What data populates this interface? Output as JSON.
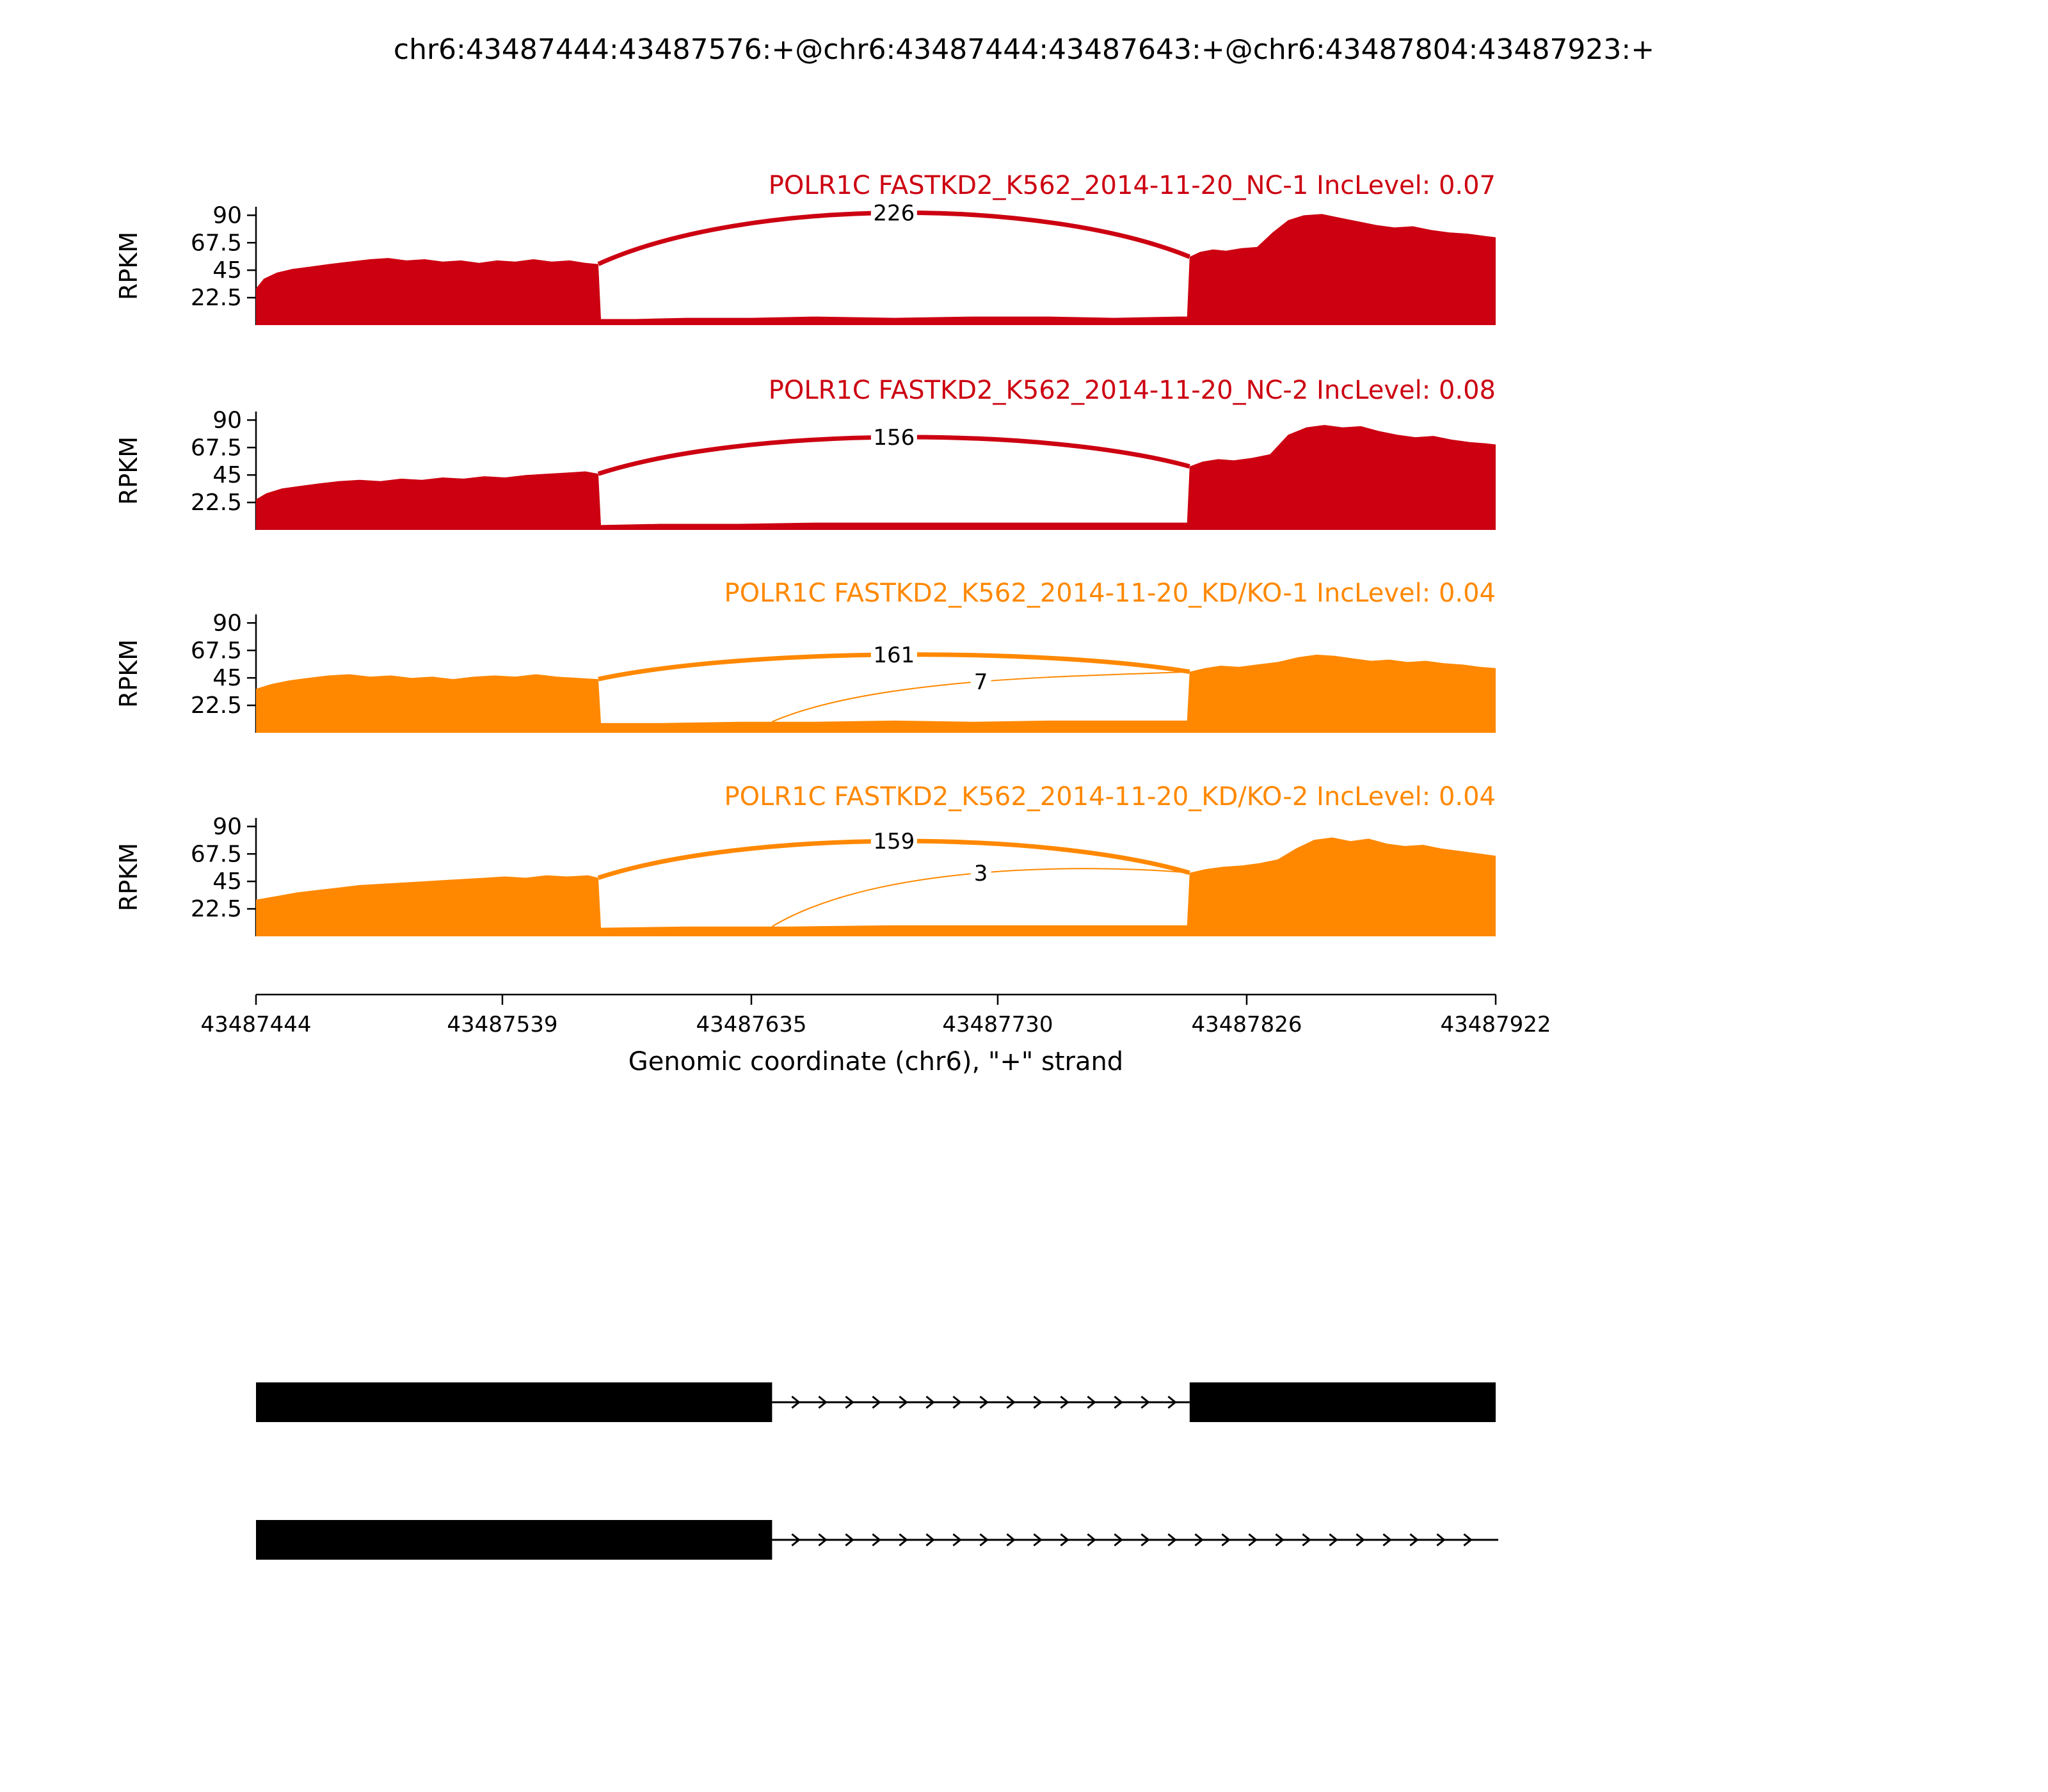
{
  "title": "chr6:43487444:43487576:+@chr6:43487444:43487643:+@chr6:43487804:43487923:+",
  "x_axis": {
    "label": "Genomic coordinate (chr6), \"+\" strand",
    "ticks": [
      43487444,
      43487539,
      43487635,
      43487730,
      43487826,
      43487922
    ],
    "range": [
      43487444,
      43487922
    ]
  },
  "y_axis": {
    "label": "RPKM",
    "ticks": [
      22.5,
      45,
      67.5,
      90
    ],
    "max": 97
  },
  "chart_data": {
    "type": "area",
    "description": "rMATS sashimi plot: RNA-seq read coverage (RPKM) with splice junction read counts for an exon skipping event",
    "tracks": [
      {
        "id": "NC-1",
        "label": "POLR1C FASTKD2_K562_2014-11-20_NC-1 IncLevel: 0.07",
        "inc_level": "0.07",
        "color": "#CC0011",
        "coverage": [
          [
            43487444,
            30
          ],
          [
            43487447,
            38
          ],
          [
            43487452,
            43
          ],
          [
            43487458,
            46
          ],
          [
            43487465,
            48
          ],
          [
            43487472,
            50
          ],
          [
            43487480,
            52
          ],
          [
            43487488,
            54
          ],
          [
            43487495,
            55
          ],
          [
            43487502,
            53
          ],
          [
            43487509,
            54
          ],
          [
            43487516,
            52
          ],
          [
            43487523,
            53
          ],
          [
            43487530,
            51
          ],
          [
            43487537,
            53
          ],
          [
            43487544,
            52
          ],
          [
            43487551,
            54
          ],
          [
            43487558,
            52
          ],
          [
            43487565,
            53
          ],
          [
            43487571,
            51
          ],
          [
            43487576,
            50
          ],
          [
            43487577,
            5
          ],
          [
            43487590,
            5
          ],
          [
            43487610,
            6
          ],
          [
            43487635,
            6
          ],
          [
            43487660,
            7
          ],
          [
            43487690,
            6
          ],
          [
            43487720,
            7
          ],
          [
            43487750,
            7
          ],
          [
            43487775,
            6
          ],
          [
            43487800,
            7
          ],
          [
            43487803,
            7
          ],
          [
            43487804,
            56
          ],
          [
            43487808,
            60
          ],
          [
            43487813,
            62
          ],
          [
            43487818,
            61
          ],
          [
            43487824,
            63
          ],
          [
            43487830,
            64
          ],
          [
            43487836,
            76
          ],
          [
            43487842,
            86
          ],
          [
            43487848,
            90
          ],
          [
            43487855,
            91
          ],
          [
            43487862,
            88
          ],
          [
            43487869,
            85
          ],
          [
            43487876,
            82
          ],
          [
            43487883,
            80
          ],
          [
            43487890,
            81
          ],
          [
            43487897,
            78
          ],
          [
            43487904,
            76
          ],
          [
            43487911,
            75
          ],
          [
            43487918,
            73
          ],
          [
            43487922,
            72
          ]
        ],
        "junctions": [
          {
            "from": 43487576,
            "to": 43487804,
            "count": 226,
            "apex": 92
          }
        ]
      },
      {
        "id": "NC-2",
        "label": "POLR1C FASTKD2_K562_2014-11-20_NC-2 IncLevel: 0.08",
        "inc_level": "0.08",
        "color": "#CC0011",
        "coverage": [
          [
            43487444,
            25
          ],
          [
            43487448,
            30
          ],
          [
            43487454,
            34
          ],
          [
            43487461,
            36
          ],
          [
            43487468,
            38
          ],
          [
            43487476,
            40
          ],
          [
            43487484,
            41
          ],
          [
            43487492,
            40
          ],
          [
            43487500,
            42
          ],
          [
            43487508,
            41
          ],
          [
            43487516,
            43
          ],
          [
            43487524,
            42
          ],
          [
            43487532,
            44
          ],
          [
            43487540,
            43
          ],
          [
            43487548,
            45
          ],
          [
            43487556,
            46
          ],
          [
            43487564,
            47
          ],
          [
            43487571,
            48
          ],
          [
            43487576,
            46
          ],
          [
            43487577,
            4
          ],
          [
            43487600,
            5
          ],
          [
            43487630,
            5
          ],
          [
            43487660,
            6
          ],
          [
            43487700,
            6
          ],
          [
            43487740,
            6
          ],
          [
            43487780,
            6
          ],
          [
            43487803,
            6
          ],
          [
            43487804,
            52
          ],
          [
            43487809,
            56
          ],
          [
            43487815,
            58
          ],
          [
            43487821,
            57
          ],
          [
            43487828,
            59
          ],
          [
            43487835,
            62
          ],
          [
            43487842,
            78
          ],
          [
            43487849,
            84
          ],
          [
            43487856,
            86
          ],
          [
            43487863,
            84
          ],
          [
            43487870,
            85
          ],
          [
            43487877,
            81
          ],
          [
            43487884,
            78
          ],
          [
            43487891,
            76
          ],
          [
            43487898,
            77
          ],
          [
            43487905,
            74
          ],
          [
            43487912,
            72
          ],
          [
            43487918,
            71
          ],
          [
            43487922,
            70
          ]
        ],
        "junctions": [
          {
            "from": 43487576,
            "to": 43487804,
            "count": 156,
            "apex": 76
          }
        ]
      },
      {
        "id": "KD/KO-1",
        "label": "POLR1C FASTKD2_K562_2014-11-20_KD/KO-1 IncLevel: 0.04",
        "inc_level": "0.04",
        "color": "#FF8800",
        "coverage": [
          [
            43487444,
            36
          ],
          [
            43487450,
            40
          ],
          [
            43487457,
            43
          ],
          [
            43487464,
            45
          ],
          [
            43487472,
            47
          ],
          [
            43487480,
            48
          ],
          [
            43487488,
            46
          ],
          [
            43487496,
            47
          ],
          [
            43487504,
            45
          ],
          [
            43487512,
            46
          ],
          [
            43487520,
            44
          ],
          [
            43487528,
            46
          ],
          [
            43487536,
            47
          ],
          [
            43487544,
            46
          ],
          [
            43487552,
            48
          ],
          [
            43487560,
            46
          ],
          [
            43487568,
            45
          ],
          [
            43487576,
            44
          ],
          [
            43487577,
            8
          ],
          [
            43487600,
            8
          ],
          [
            43487630,
            9
          ],
          [
            43487660,
            9
          ],
          [
            43487690,
            10
          ],
          [
            43487720,
            9
          ],
          [
            43487750,
            10
          ],
          [
            43487780,
            10
          ],
          [
            43487803,
            10
          ],
          [
            43487804,
            50
          ],
          [
            43487810,
            53
          ],
          [
            43487816,
            55
          ],
          [
            43487823,
            54
          ],
          [
            43487830,
            56
          ],
          [
            43487838,
            58
          ],
          [
            43487846,
            62
          ],
          [
            43487853,
            64
          ],
          [
            43487860,
            63
          ],
          [
            43487867,
            61
          ],
          [
            43487874,
            59
          ],
          [
            43487881,
            60
          ],
          [
            43487888,
            58
          ],
          [
            43487895,
            59
          ],
          [
            43487902,
            57
          ],
          [
            43487909,
            56
          ],
          [
            43487916,
            54
          ],
          [
            43487922,
            53
          ]
        ],
        "junctions": [
          {
            "from": 43487576,
            "to": 43487804,
            "count": 161,
            "apex": 64
          },
          {
            "from": 43487643,
            "to": 43487804,
            "count": 7,
            "apex": 42
          }
        ]
      },
      {
        "id": "KD/KO-2",
        "label": "POLR1C FASTKD2_K562_2014-11-20_KD/KO-2 IncLevel: 0.04",
        "inc_level": "0.04",
        "color": "#FF8800",
        "coverage": [
          [
            43487444,
            30
          ],
          [
            43487452,
            33
          ],
          [
            43487460,
            36
          ],
          [
            43487468,
            38
          ],
          [
            43487476,
            40
          ],
          [
            43487484,
            42
          ],
          [
            43487492,
            43
          ],
          [
            43487500,
            44
          ],
          [
            43487508,
            45
          ],
          [
            43487516,
            46
          ],
          [
            43487524,
            47
          ],
          [
            43487532,
            48
          ],
          [
            43487540,
            49
          ],
          [
            43487548,
            48
          ],
          [
            43487556,
            50
          ],
          [
            43487564,
            49
          ],
          [
            43487572,
            50
          ],
          [
            43487576,
            48
          ],
          [
            43487577,
            7
          ],
          [
            43487610,
            8
          ],
          [
            43487650,
            8
          ],
          [
            43487690,
            9
          ],
          [
            43487730,
            9
          ],
          [
            43487770,
            9
          ],
          [
            43487803,
            9
          ],
          [
            43487804,
            52
          ],
          [
            43487810,
            55
          ],
          [
            43487817,
            57
          ],
          [
            43487824,
            58
          ],
          [
            43487831,
            60
          ],
          [
            43487838,
            63
          ],
          [
            43487845,
            72
          ],
          [
            43487852,
            79
          ],
          [
            43487859,
            81
          ],
          [
            43487866,
            78
          ],
          [
            43487873,
            80
          ],
          [
            43487880,
            76
          ],
          [
            43487887,
            74
          ],
          [
            43487894,
            75
          ],
          [
            43487901,
            72
          ],
          [
            43487908,
            70
          ],
          [
            43487915,
            68
          ],
          [
            43487922,
            66
          ]
        ],
        "junctions": [
          {
            "from": 43487576,
            "to": 43487804,
            "count": 159,
            "apex": 78
          },
          {
            "from": 43487643,
            "to": 43487804,
            "count": 3,
            "apex": 52
          }
        ]
      }
    ]
  },
  "isoforms": [
    {
      "exons": [
        [
          43487444,
          43487643
        ],
        [
          43487804,
          43487923
        ]
      ],
      "intron_lines": [
        [
          43487643,
          43487804
        ]
      ]
    },
    {
      "exons": [
        [
          43487444,
          43487643
        ]
      ],
      "intron_lines": [
        [
          43487643,
          43487923
        ]
      ]
    }
  ]
}
